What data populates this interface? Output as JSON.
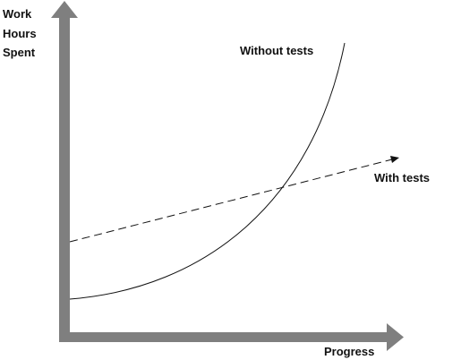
{
  "y_axis_label": [
    "Work",
    "Hours",
    "Spent"
  ],
  "x_axis_label": "Progress",
  "curves": [
    {
      "label": "Without tests"
    },
    {
      "label": "With tests"
    }
  ]
}
